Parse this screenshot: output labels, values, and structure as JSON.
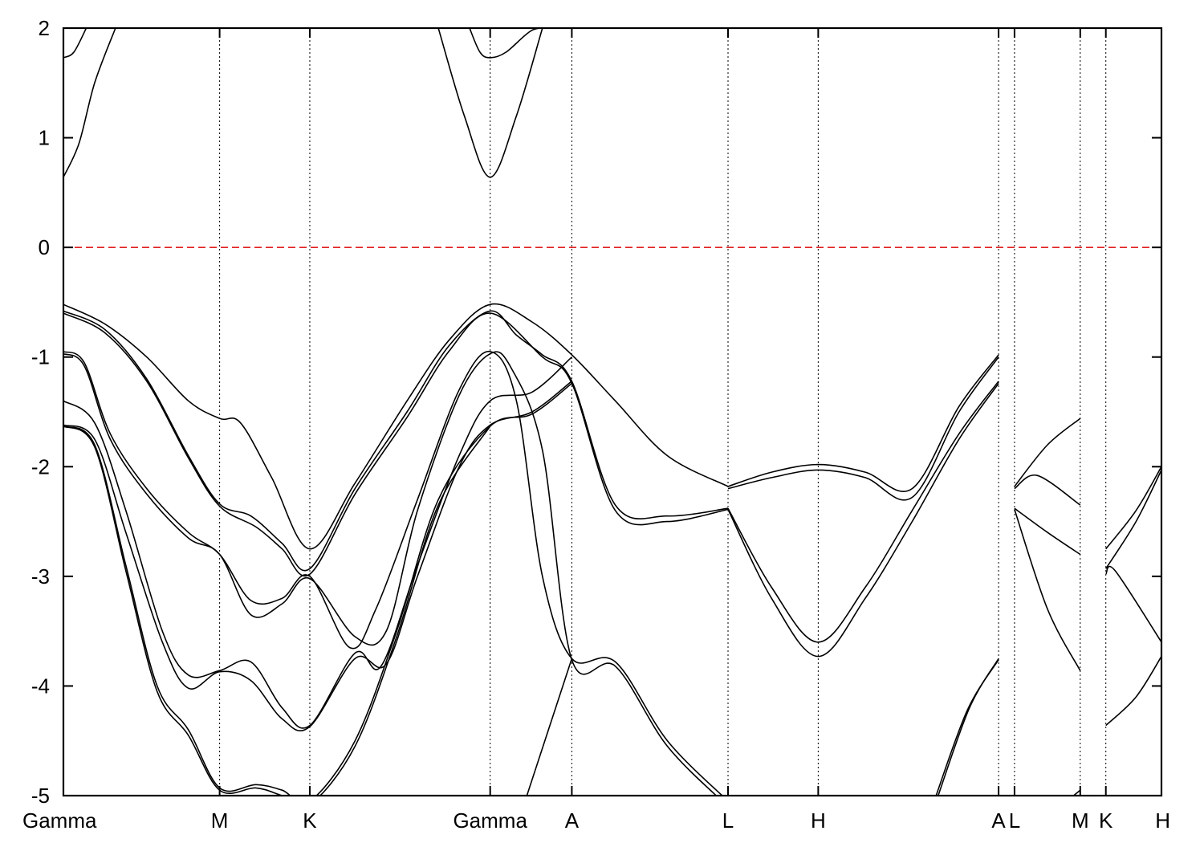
{
  "chart_data": {
    "type": "line",
    "title": "",
    "xlabel": "",
    "ylabel": "",
    "ylim": [
      -5,
      2
    ],
    "yticks": [
      -5,
      -4,
      -3,
      -2,
      -1,
      0,
      1,
      2
    ],
    "grid": "vertical dotted lines at high-symmetry points",
    "reference_line": {
      "y": 0,
      "color": "#e02020",
      "style": "dashed"
    },
    "kpoints": [
      {
        "label": "Gamma",
        "x": 0.0
      },
      {
        "label": "M",
        "x": 1.5
      },
      {
        "label": "K",
        "x": 2.366
      },
      {
        "label": "Gamma",
        "x": 4.098
      },
      {
        "label": "A",
        "x": 4.882
      },
      {
        "label": "L",
        "x": 6.382
      },
      {
        "label": "H",
        "x": 7.248
      },
      {
        "label": "A",
        "x": 8.98
      },
      {
        "label": "L",
        "x": 9.133
      },
      {
        "label": "M",
        "x": 9.764
      },
      {
        "label": "K",
        "x": 10.01
      },
      {
        "label": "H",
        "x": 10.544
      }
    ],
    "series": [
      {
        "points": [
          [
            0,
            1.73
          ],
          [
            0.1,
            1.78
          ],
          [
            0.22,
            2.0
          ]
        ]
      },
      {
        "points": [
          [
            0,
            0.64
          ],
          [
            0.15,
            0.95
          ],
          [
            0.3,
            1.5
          ],
          [
            0.5,
            2.0
          ]
        ]
      },
      {
        "points": [
          [
            3.6,
            2.0
          ],
          [
            3.85,
            1.2
          ],
          [
            4.098,
            0.64
          ],
          [
            4.35,
            1.2
          ],
          [
            4.6,
            2.0
          ]
        ]
      },
      {
        "points": [
          [
            3.9,
            2.0
          ],
          [
            4.0,
            1.78
          ],
          [
            4.098,
            1.73
          ],
          [
            4.25,
            1.78
          ],
          [
            4.5,
            1.98
          ],
          [
            4.7,
            2.0
          ]
        ]
      },
      {
        "points": [
          [
            0,
            -0.52
          ],
          [
            0.4,
            -0.7
          ],
          [
            0.8,
            -1.0
          ],
          [
            1.2,
            -1.4
          ],
          [
            1.5,
            -1.56
          ],
          [
            1.7,
            -1.6
          ],
          [
            2.0,
            -2.1
          ],
          [
            2.366,
            -2.75
          ],
          [
            2.8,
            -2.15
          ],
          [
            3.3,
            -1.4
          ],
          [
            3.7,
            -0.85
          ],
          [
            4.098,
            -0.52
          ],
          [
            4.5,
            -0.68
          ],
          [
            4.882,
            -0.98
          ],
          [
            5.3,
            -1.4
          ],
          [
            5.8,
            -1.9
          ],
          [
            6.382,
            -2.18
          ]
        ]
      },
      {
        "points": [
          [
            0,
            -0.58
          ],
          [
            0.4,
            -0.75
          ],
          [
            0.8,
            -1.2
          ],
          [
            1.2,
            -1.9
          ],
          [
            1.5,
            -2.34
          ],
          [
            1.8,
            -2.45
          ],
          [
            2.1,
            -2.7
          ],
          [
            2.366,
            -2.93
          ],
          [
            2.8,
            -2.2
          ],
          [
            3.3,
            -1.5
          ],
          [
            3.7,
            -0.9
          ],
          [
            4.098,
            -0.58
          ],
          [
            4.35,
            -0.8
          ],
          [
            4.6,
            -0.98
          ],
          [
            4.882,
            -1.22
          ],
          [
            5.3,
            -2.35
          ],
          [
            5.8,
            -2.45
          ],
          [
            6.382,
            -2.38
          ]
        ]
      },
      {
        "points": [
          [
            0,
            -0.6
          ],
          [
            0.4,
            -0.78
          ],
          [
            0.8,
            -1.22
          ],
          [
            1.2,
            -1.92
          ],
          [
            1.5,
            -2.36
          ],
          [
            1.85,
            -2.55
          ],
          [
            2.1,
            -2.75
          ],
          [
            2.366,
            -2.98
          ],
          [
            2.8,
            -2.25
          ],
          [
            3.3,
            -1.55
          ],
          [
            3.7,
            -0.95
          ],
          [
            4.098,
            -0.6
          ],
          [
            4.6,
            -1.0
          ],
          [
            4.882,
            -1.24
          ],
          [
            5.3,
            -2.4
          ],
          [
            5.8,
            -2.5
          ],
          [
            6.382,
            -2.39
          ]
        ]
      },
      {
        "points": [
          [
            0,
            -0.95
          ],
          [
            0.2,
            -1.05
          ],
          [
            0.45,
            -1.7
          ],
          [
            0.8,
            -2.2
          ],
          [
            1.2,
            -2.6
          ],
          [
            1.5,
            -2.8
          ],
          [
            1.8,
            -3.22
          ],
          [
            2.1,
            -3.2
          ],
          [
            2.366,
            -3.0
          ],
          [
            2.75,
            -3.65
          ],
          [
            3.0,
            -3.3
          ],
          [
            3.4,
            -2.3
          ],
          [
            3.8,
            -1.3
          ],
          [
            4.098,
            -0.95
          ],
          [
            4.35,
            -1.4
          ],
          [
            4.6,
            -3.0
          ],
          [
            4.882,
            -3.75
          ],
          [
            5.3,
            -3.78
          ],
          [
            5.8,
            -4.5
          ],
          [
            6.382,
            -5.05
          ]
        ]
      },
      {
        "points": [
          [
            0,
            -0.97
          ],
          [
            0.2,
            -1.08
          ],
          [
            0.45,
            -1.75
          ],
          [
            0.8,
            -2.25
          ],
          [
            1.2,
            -2.65
          ],
          [
            1.5,
            -2.8
          ],
          [
            1.8,
            -3.35
          ],
          [
            2.1,
            -3.25
          ],
          [
            2.366,
            -3.02
          ],
          [
            2.8,
            -3.55
          ],
          [
            3.1,
            -3.5
          ],
          [
            3.4,
            -2.4
          ],
          [
            3.8,
            -1.35
          ],
          [
            4.098,
            -0.97
          ],
          [
            4.3,
            -1.1
          ],
          [
            4.6,
            -1.85
          ],
          [
            4.882,
            -3.76
          ],
          [
            5.3,
            -3.82
          ],
          [
            5.8,
            -4.55
          ],
          [
            6.382,
            -5.1
          ]
        ]
      },
      {
        "points": [
          [
            0,
            -1.4
          ],
          [
            0.3,
            -1.6
          ],
          [
            0.6,
            -2.4
          ],
          [
            0.95,
            -3.5
          ],
          [
            1.2,
            -3.9
          ],
          [
            1.5,
            -3.86
          ],
          [
            1.8,
            -3.78
          ],
          [
            2.1,
            -4.2
          ],
          [
            2.366,
            -4.36
          ],
          [
            2.8,
            -3.7
          ],
          [
            3.05,
            -3.82
          ],
          [
            3.4,
            -2.9
          ],
          [
            3.8,
            -1.9
          ],
          [
            4.098,
            -1.4
          ],
          [
            4.5,
            -1.32
          ],
          [
            4.882,
            -1.0
          ]
        ]
      },
      {
        "points": [
          [
            0,
            -1.62
          ],
          [
            0.3,
            -1.75
          ],
          [
            0.6,
            -2.6
          ],
          [
            0.95,
            -3.6
          ],
          [
            1.2,
            -4.02
          ],
          [
            1.5,
            -3.87
          ],
          [
            1.8,
            -3.95
          ],
          [
            2.1,
            -4.3
          ],
          [
            2.366,
            -4.37
          ],
          [
            2.8,
            -3.75
          ],
          [
            3.1,
            -3.8
          ],
          [
            3.4,
            -3.0
          ],
          [
            3.8,
            -2.0
          ],
          [
            4.098,
            -1.62
          ],
          [
            4.5,
            -1.5
          ],
          [
            4.882,
            -1.22
          ]
        ]
      },
      {
        "points": [
          [
            0,
            -1.63
          ],
          [
            0.3,
            -1.8
          ],
          [
            0.6,
            -2.9
          ],
          [
            0.9,
            -4.0
          ],
          [
            1.2,
            -4.4
          ],
          [
            1.5,
            -4.93
          ],
          [
            1.85,
            -4.9
          ],
          [
            2.1,
            -4.95
          ],
          [
            2.366,
            -5.05
          ],
          [
            2.8,
            -4.5
          ],
          [
            3.2,
            -3.5
          ],
          [
            3.6,
            -2.3
          ],
          [
            4.098,
            -1.63
          ],
          [
            4.5,
            -1.52
          ],
          [
            4.882,
            -1.24
          ]
        ]
      },
      {
        "points": [
          [
            0,
            -1.63
          ],
          [
            0.3,
            -1.82
          ],
          [
            0.6,
            -2.95
          ],
          [
            0.9,
            -4.05
          ],
          [
            1.2,
            -4.45
          ],
          [
            1.5,
            -4.95
          ],
          [
            1.85,
            -4.93
          ],
          [
            2.1,
            -5.0
          ],
          [
            2.366,
            -5.08
          ],
          [
            2.8,
            -4.55
          ],
          [
            3.2,
            -3.55
          ],
          [
            3.6,
            -2.35
          ],
          [
            4.098,
            -1.63
          ]
        ]
      },
      {
        "points": [
          [
            4.45,
            -5.0
          ],
          [
            4.882,
            -3.75
          ]
        ]
      },
      {
        "points": [
          [
            6.382,
            -2.18
          ],
          [
            6.8,
            -2.05
          ],
          [
            7.248,
            -1.98
          ],
          [
            7.7,
            -2.05
          ],
          [
            8.15,
            -2.2
          ],
          [
            8.6,
            -1.45
          ],
          [
            8.98,
            -0.98
          ]
        ]
      },
      {
        "points": [
          [
            6.382,
            -2.2
          ],
          [
            6.8,
            -2.1
          ],
          [
            7.248,
            -2.03
          ],
          [
            7.7,
            -2.1
          ],
          [
            8.15,
            -2.28
          ],
          [
            8.6,
            -1.5
          ],
          [
            8.98,
            -1.0
          ]
        ]
      },
      {
        "points": [
          [
            6.382,
            -2.38
          ],
          [
            6.8,
            -3.1
          ],
          [
            7.248,
            -3.6
          ],
          [
            7.7,
            -3.1
          ],
          [
            8.15,
            -2.4
          ],
          [
            8.6,
            -1.7
          ],
          [
            8.98,
            -1.22
          ]
        ]
      },
      {
        "points": [
          [
            6.382,
            -2.39
          ],
          [
            6.8,
            -3.2
          ],
          [
            7.248,
            -3.73
          ],
          [
            7.7,
            -3.2
          ],
          [
            8.15,
            -2.5
          ],
          [
            8.6,
            -1.75
          ],
          [
            8.98,
            -1.24
          ]
        ]
      },
      {
        "points": [
          [
            8.4,
            -5.0
          ],
          [
            8.7,
            -4.2
          ],
          [
            8.98,
            -3.75
          ]
        ]
      },
      {
        "points": [
          [
            8.38,
            -5.0
          ],
          [
            8.68,
            -4.22
          ],
          [
            8.98,
            -3.76
          ]
        ]
      },
      {
        "points": [
          [
            9.133,
            -2.18
          ],
          [
            9.45,
            -1.8
          ],
          [
            9.764,
            -1.56
          ]
        ]
      },
      {
        "points": [
          [
            9.133,
            -2.2
          ],
          [
            9.35,
            -2.08
          ],
          [
            9.764,
            -2.35
          ]
        ]
      },
      {
        "points": [
          [
            9.133,
            -2.38
          ],
          [
            9.45,
            -2.6
          ],
          [
            9.764,
            -2.8
          ]
        ]
      },
      {
        "points": [
          [
            9.133,
            -2.39
          ],
          [
            9.45,
            -3.3
          ],
          [
            9.764,
            -3.86
          ]
        ]
      },
      {
        "points": [
          [
            9.7,
            -5.0
          ],
          [
            9.764,
            -4.95
          ]
        ]
      },
      {
        "points": [
          [
            10.01,
            -2.75
          ],
          [
            10.3,
            -2.4
          ],
          [
            10.544,
            -2.0
          ]
        ]
      },
      {
        "points": [
          [
            10.01,
            -2.93
          ],
          [
            10.3,
            -2.5
          ],
          [
            10.544,
            -2.03
          ]
        ]
      },
      {
        "points": [
          [
            10.01,
            -2.98
          ],
          [
            10.1,
            -2.95
          ],
          [
            10.544,
            -3.6
          ]
        ]
      },
      {
        "points": [
          [
            10.01,
            -4.36
          ],
          [
            10.3,
            -4.1
          ],
          [
            10.544,
            -3.73
          ]
        ]
      }
    ]
  }
}
